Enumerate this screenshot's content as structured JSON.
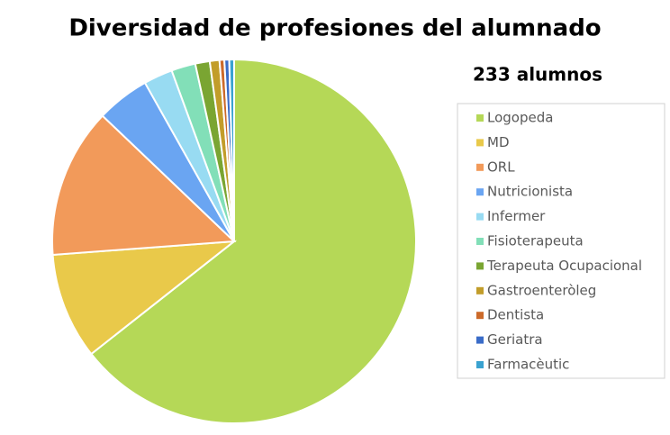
{
  "chart_data": {
    "type": "pie",
    "title": "Diversidad de profesiones del alumnado",
    "subtitle": "233 alumnos",
    "categories": [
      "Logopeda",
      "MD",
      "ORL",
      "Nutricionista",
      "Infermer",
      "Fisioterapeuta",
      "Terapeuta Ocupacional",
      "Gastroenteròleg",
      "Dentista",
      "Geriatra",
      "Farmacèutic"
    ],
    "values": [
      150,
      22,
      31,
      11,
      6,
      5,
      3,
      2,
      1,
      1,
      1
    ],
    "colors": [
      "#b5d857",
      "#e9c94a",
      "#f29a5a",
      "#6aa5f2",
      "#98dbf2",
      "#82dfb8",
      "#7aa532",
      "#c29d2a",
      "#cc6a2a",
      "#3a6cc8",
      "#3aa2d0"
    ],
    "legend": "right"
  }
}
